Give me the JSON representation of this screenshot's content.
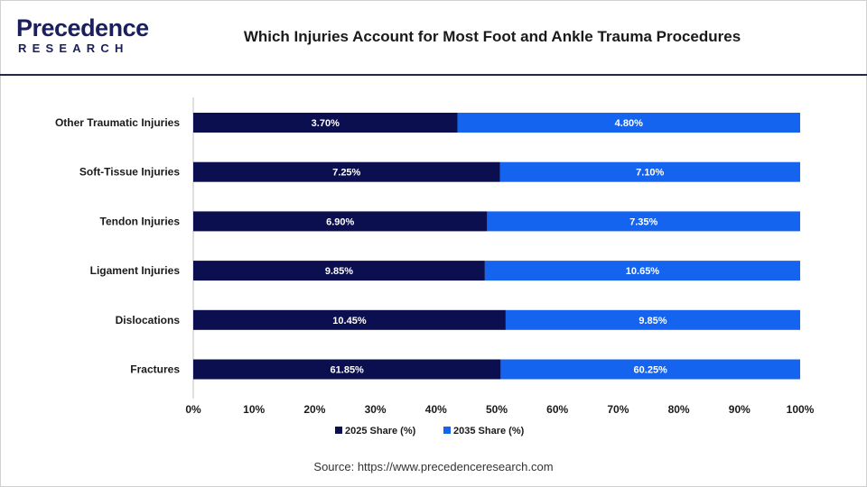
{
  "header": {
    "logo_top": "Precedence",
    "logo_bottom": "RESEARCH",
    "title": "Which Injuries Account for Most Foot and Ankle Trauma Procedures"
  },
  "source": "Source: https://www.precedenceresearch.com",
  "colors": {
    "series_2025": "#0b0f4f",
    "series_2035": "#1464f0",
    "brand": "#1b1f5e"
  },
  "chart_data": {
    "type": "bar",
    "orientation": "horizontal",
    "stacked": "percent",
    "categories": [
      "Other Traumatic Injuries",
      "Soft-Tissue Injuries",
      "Tendon Injuries",
      "Ligament Injuries",
      "Dislocations",
      "Fractures"
    ],
    "series": [
      {
        "name": "2025 Share (%)",
        "values": [
          3.7,
          7.25,
          6.9,
          9.85,
          10.45,
          61.85
        ],
        "labels": [
          "3.70%",
          "7.25%",
          "6.90%",
          "9.85%",
          "10.45%",
          "61.85%"
        ]
      },
      {
        "name": "2035 Share (%)",
        "values": [
          4.8,
          7.1,
          7.35,
          10.65,
          9.85,
          60.25
        ],
        "labels": [
          "4.80%",
          "7.10%",
          "7.35%",
          "10.65%",
          "9.85%",
          "60.25%"
        ]
      }
    ],
    "xlim": [
      0,
      100
    ],
    "xticks": [
      "0%",
      "10%",
      "20%",
      "30%",
      "40%",
      "50%",
      "60%",
      "70%",
      "80%",
      "90%",
      "100%"
    ],
    "grid": false,
    "legend": "bottom"
  }
}
